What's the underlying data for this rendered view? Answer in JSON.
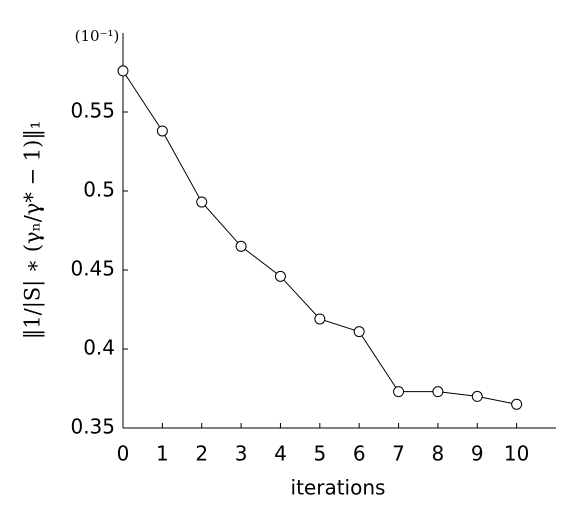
{
  "chart_data": {
    "type": "line",
    "x_label": "iterations",
    "y_label": "‖1/|S| ∗ (γₙ/γ* − 1)‖₁",
    "y_multiplier": "(10⁻¹)",
    "x": [
      0,
      1,
      2,
      3,
      4,
      5,
      6,
      7,
      8,
      9,
      10
    ],
    "series": [
      {
        "color": "#000000",
        "values": [
          0.576,
          0.538,
          0.493,
          0.465,
          0.446,
          0.419,
          0.411,
          0.373,
          0.373,
          0.37,
          0.365
        ]
      }
    ],
    "xlim": [
      0,
      11
    ],
    "xticks": [
      0,
      1,
      2,
      3,
      4,
      5,
      6,
      7,
      8,
      9,
      10
    ],
    "ylim": [
      0.35,
      0.6
    ],
    "yticks": [
      0.35,
      0.4,
      0.45,
      0.5,
      0.55
    ]
  }
}
